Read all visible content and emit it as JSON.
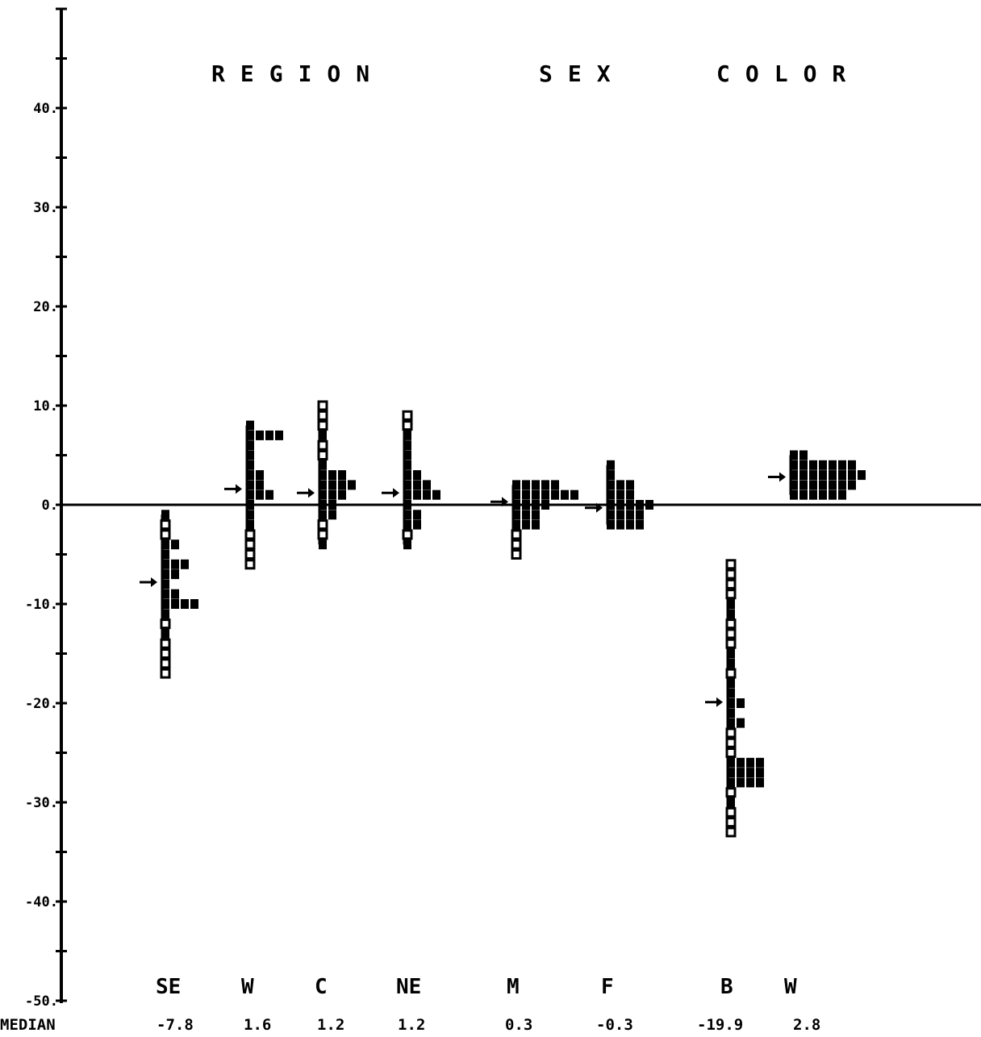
{
  "chart_data": {
    "type": "histogram-strip",
    "ylim": [
      -50,
      50
    ],
    "y_ticks": [
      40,
      30,
      20,
      10,
      0,
      -10,
      -20,
      -30,
      -40,
      -50
    ],
    "y_tick_labels": [
      "40.",
      "30.",
      "20.",
      "10.",
      "0.",
      "-10.",
      "-20.",
      "-30.",
      "-40.",
      "-50."
    ],
    "reference_line": 0,
    "groups": [
      {
        "title": "REGION",
        "categories": [
          "SE",
          "W",
          "C",
          "NE"
        ]
      },
      {
        "title": "SEX",
        "categories": [
          "M",
          "F"
        ]
      },
      {
        "title": "COLOR",
        "categories": [
          "B",
          "W"
        ]
      }
    ],
    "median_label": "MEDIAN",
    "categories": [
      {
        "name": "SE",
        "median": -7.8,
        "median_label": "-7.8",
        "bins": [
          [
            -1,
            1
          ],
          [
            -2,
            0
          ],
          [
            -3,
            0
          ],
          [
            -4,
            2
          ],
          [
            -5,
            1
          ],
          [
            -6,
            3
          ],
          [
            -7,
            2
          ],
          [
            -8,
            1
          ],
          [
            -9,
            2
          ],
          [
            -10,
            4
          ],
          [
            -11,
            1
          ],
          [
            -12,
            0
          ],
          [
            -13,
            1
          ],
          [
            -14,
            0
          ],
          [
            -15,
            0
          ],
          [
            -16,
            0
          ],
          [
            -17,
            0
          ]
        ]
      },
      {
        "name": "W",
        "median": 1.6,
        "median_label": "1.6",
        "bins": [
          [
            8,
            1
          ],
          [
            7,
            4
          ],
          [
            6,
            1
          ],
          [
            5,
            1
          ],
          [
            4,
            1
          ],
          [
            3,
            2
          ],
          [
            2,
            2
          ],
          [
            1,
            3
          ],
          [
            0,
            1
          ],
          [
            -1,
            1
          ],
          [
            -2,
            1
          ],
          [
            -3,
            0
          ],
          [
            -4,
            0
          ],
          [
            -5,
            0
          ],
          [
            -6,
            0
          ]
        ]
      },
      {
        "name": "C",
        "median": 1.2,
        "median_label": "1.2",
        "bins": [
          [
            10,
            0
          ],
          [
            9,
            0
          ],
          [
            8,
            0
          ],
          [
            7,
            1
          ],
          [
            6,
            0
          ],
          [
            5,
            0
          ],
          [
            4,
            1
          ],
          [
            3,
            3
          ],
          [
            2,
            4
          ],
          [
            1,
            3
          ],
          [
            0,
            2
          ],
          [
            -1,
            2
          ],
          [
            -2,
            0
          ],
          [
            -3,
            0
          ],
          [
            -4,
            1
          ]
        ]
      },
      {
        "name": "NE",
        "median": 1.2,
        "median_label": "1.2",
        "bins": [
          [
            9,
            0
          ],
          [
            8,
            0
          ],
          [
            7,
            1
          ],
          [
            6,
            1
          ],
          [
            5,
            1
          ],
          [
            4,
            1
          ],
          [
            3,
            2
          ],
          [
            2,
            3
          ],
          [
            1,
            4
          ],
          [
            0,
            1
          ],
          [
            -1,
            2
          ],
          [
            -2,
            2
          ],
          [
            -3,
            0
          ],
          [
            -4,
            1
          ]
        ]
      },
      {
        "name": "M",
        "median": 0.3,
        "median_label": "0.3",
        "bins": [
          [
            2,
            5
          ],
          [
            1,
            7
          ],
          [
            0,
            4
          ],
          [
            -1,
            3
          ],
          [
            -2,
            3
          ],
          [
            -3,
            0
          ],
          [
            -4,
            0
          ],
          [
            -5,
            0
          ]
        ]
      },
      {
        "name": "F",
        "median": -0.3,
        "median_label": "-0.3",
        "bins": [
          [
            4,
            1
          ],
          [
            3,
            1
          ],
          [
            2,
            3
          ],
          [
            1,
            3
          ],
          [
            0,
            5
          ],
          [
            -1,
            4
          ],
          [
            -2,
            4
          ]
        ]
      },
      {
        "name": "B",
        "median": -19.9,
        "median_label": "-19.9",
        "bins": [
          [
            -6,
            0
          ],
          [
            -7,
            0
          ],
          [
            -8,
            0
          ],
          [
            -9,
            0
          ],
          [
            -10,
            1
          ],
          [
            -11,
            1
          ],
          [
            -12,
            0
          ],
          [
            -13,
            0
          ],
          [
            -14,
            0
          ],
          [
            -15,
            1
          ],
          [
            -16,
            1
          ],
          [
            -17,
            0
          ],
          [
            -18,
            1
          ],
          [
            -19,
            1
          ],
          [
            -20,
            2
          ],
          [
            -21,
            1
          ],
          [
            -22,
            2
          ],
          [
            -23,
            0
          ],
          [
            -24,
            0
          ],
          [
            -25,
            0
          ],
          [
            -26,
            4
          ],
          [
            -27,
            4
          ],
          [
            -28,
            4
          ],
          [
            -29,
            0
          ],
          [
            -30,
            1
          ],
          [
            -31,
            0
          ],
          [
            -32,
            0
          ],
          [
            -33,
            0
          ]
        ]
      },
      {
        "name": "W",
        "median": 2.8,
        "median_label": "2.8",
        "bins": [
          [
            5,
            2
          ],
          [
            4,
            7
          ],
          [
            3,
            8
          ],
          [
            2,
            7
          ],
          [
            1,
            6
          ]
        ]
      }
    ]
  }
}
